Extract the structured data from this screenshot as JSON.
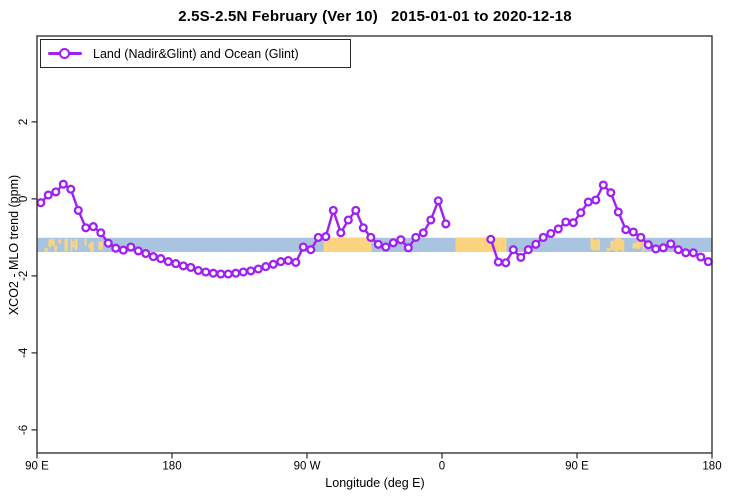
{
  "chart_data": {
    "type": "line",
    "title": "2.5S-2.5N February (Ver 10)   2015-01-01 to 2020-12-18",
    "xlabel": "Longitude (deg E)",
    "ylabel": "XCO2 - MLO trend (ppm)",
    "legend": {
      "label": "Land (Nadir&Glint) and Ocean (Glint)",
      "position": "top-left"
    },
    "axis": {
      "x_ticks": [
        {
          "lon": 90,
          "label": "90 E"
        },
        {
          "lon": 180,
          "label": "180"
        },
        {
          "lon": 270,
          "label": "90 W"
        },
        {
          "lon": 360,
          "label": "0"
        },
        {
          "lon": 450,
          "label": "90 E"
        },
        {
          "lon": 540,
          "label": "180"
        }
      ],
      "y_ticks": [
        {
          "value": 2,
          "label": "2"
        },
        {
          "value": 0,
          "label": "0"
        },
        {
          "value": -2,
          "label": "-2"
        },
        {
          "value": -4,
          "label": "-4"
        },
        {
          "value": -6,
          "label": "-6"
        }
      ],
      "xlim": [
        90,
        540
      ],
      "ylim": [
        -6.6,
        4.23
      ],
      "grid": false
    },
    "reference_band": {
      "value_top": -1.01,
      "value_bottom": -1.38,
      "base_color": "#A9C4E1",
      "highlight_color": "#FAD47E",
      "segments": [
        {
          "style": "speckled",
          "lon_start": 95,
          "lon_end": 135
        },
        {
          "style": "solid",
          "lon_start": 281,
          "lon_end": 313
        },
        {
          "style": "solid",
          "lon_start": 369,
          "lon_end": 403
        },
        {
          "style": "speckled",
          "lon_start": 455,
          "lon_end": 503
        }
      ]
    },
    "series": [
      {
        "name": "Land (Nadir&Glint) and Ocean (Glint)",
        "color": "#A020F0",
        "marker": "open-circle",
        "points": [
          [
            92.5,
            -0.1
          ],
          [
            97.5,
            0.1
          ],
          [
            102.5,
            0.18
          ],
          [
            107.5,
            0.38
          ],
          [
            112.5,
            0.25
          ],
          [
            117.5,
            -0.3
          ],
          [
            122.5,
            -0.75
          ],
          [
            127.5,
            -0.72
          ],
          [
            132.5,
            -0.88
          ],
          [
            137.5,
            -1.15
          ],
          [
            142.5,
            -1.28
          ],
          [
            147.5,
            -1.33
          ],
          [
            152.5,
            -1.25
          ],
          [
            157.5,
            -1.35
          ],
          [
            162.5,
            -1.42
          ],
          [
            167.5,
            -1.5
          ],
          [
            172.5,
            -1.55
          ],
          [
            177.5,
            -1.63
          ],
          [
            182.5,
            -1.68
          ],
          [
            187.5,
            -1.74
          ],
          [
            192.5,
            -1.78
          ],
          [
            197.5,
            -1.86
          ],
          [
            202.5,
            -1.9
          ],
          [
            207.5,
            -1.93
          ],
          [
            212.5,
            -1.95
          ],
          [
            217.5,
            -1.95
          ],
          [
            222.5,
            -1.93
          ],
          [
            227.5,
            -1.9
          ],
          [
            232.5,
            -1.87
          ],
          [
            237.5,
            -1.82
          ],
          [
            242.5,
            -1.76
          ],
          [
            247.5,
            -1.7
          ],
          [
            252.5,
            -1.63
          ],
          [
            257.5,
            -1.6
          ],
          [
            262.5,
            -1.65
          ],
          [
            267.5,
            -1.25
          ],
          [
            272.5,
            -1.32
          ],
          [
            277.5,
            -1.0
          ],
          [
            282.5,
            -0.98
          ],
          [
            287.5,
            -0.3
          ],
          [
            292.5,
            -0.88
          ],
          [
            297.5,
            -0.55
          ],
          [
            302.5,
            -0.3
          ],
          [
            307.5,
            -0.75
          ],
          [
            312.5,
            -1.0
          ],
          [
            317.5,
            -1.18
          ],
          [
            322.5,
            -1.25
          ],
          [
            327.5,
            -1.14
          ],
          [
            332.5,
            -1.06
          ],
          [
            337.5,
            -1.27
          ],
          [
            342.5,
            -1.0
          ],
          [
            347.5,
            -0.88
          ],
          [
            352.5,
            -0.55
          ],
          [
            357.5,
            -0.05
          ],
          [
            362.5,
            -0.65
          ],
          [
            392.5,
            -1.05
          ],
          [
            397.5,
            -1.64
          ],
          [
            402.5,
            -1.66
          ],
          [
            407.5,
            -1.32
          ],
          [
            412.5,
            -1.52
          ],
          [
            417.5,
            -1.32
          ],
          [
            422.5,
            -1.18
          ],
          [
            427.5,
            -1.0
          ],
          [
            432.5,
            -0.9
          ],
          [
            437.5,
            -0.78
          ],
          [
            442.5,
            -0.6
          ],
          [
            447.5,
            -0.62
          ],
          [
            452.5,
            -0.36
          ],
          [
            457.5,
            -0.08
          ],
          [
            462.5,
            -0.03
          ],
          [
            467.5,
            0.36
          ],
          [
            472.5,
            0.16
          ],
          [
            477.5,
            -0.34
          ],
          [
            482.5,
            -0.8
          ],
          [
            487.5,
            -0.86
          ],
          [
            492.5,
            -1.0
          ],
          [
            497.5,
            -1.19
          ],
          [
            502.5,
            -1.3
          ],
          [
            507.5,
            -1.27
          ],
          [
            512.5,
            -1.17
          ],
          [
            517.5,
            -1.32
          ],
          [
            522.5,
            -1.4
          ],
          [
            527.5,
            -1.4
          ],
          [
            532.5,
            -1.51
          ],
          [
            537.5,
            -1.63
          ]
        ]
      }
    ],
    "colors": {
      "series": "#A020F0",
      "band_blue": "#A9C4E1",
      "band_orange": "#FAD47E",
      "axis": "#262626",
      "text": "#000000"
    }
  }
}
